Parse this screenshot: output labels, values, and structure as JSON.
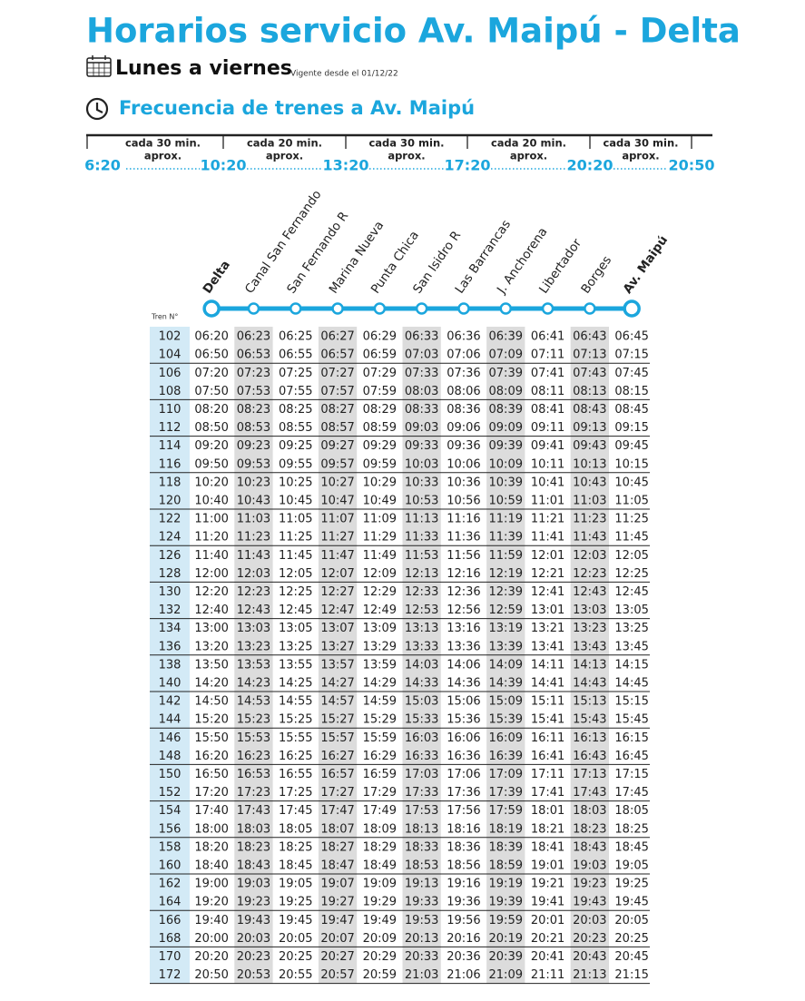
{
  "header": {
    "title": "Horarios servicio Av. Maipú - Delta",
    "days": "Lunes a viernes",
    "valid_from": "Vigente desde el 01/12/22"
  },
  "frequency": {
    "heading": "Frecuencia de trenes a Av. Maipú",
    "segments": [
      {
        "label": "cada 30 min.",
        "note": "aprox."
      },
      {
        "label": "cada 20 min.",
        "note": "aprox."
      },
      {
        "label": "cada 30 min.",
        "note": "aprox."
      },
      {
        "label": "cada 20 min.",
        "note": "aprox."
      },
      {
        "label": "cada 30 min.",
        "note": "aprox."
      }
    ],
    "times": [
      "6:20",
      "10:20",
      "13:20",
      "17:20",
      "20:20",
      "20:50"
    ]
  },
  "timetable": {
    "train_header": "Tren N°",
    "stations": [
      "Delta",
      "Canal San Fernando",
      "San Fernando R",
      "Marina Nueva",
      "Punta Chica",
      "San Isidro R",
      "Las Barrancas",
      "J. Anchorena",
      "Libertador",
      "Borges",
      "Av. Maipú"
    ],
    "rows": [
      [
        "102",
        "06:20",
        "06:23",
        "06:25",
        "06:27",
        "06:29",
        "06:33",
        "06:36",
        "06:39",
        "06:41",
        "06:43",
        "06:45"
      ],
      [
        "104",
        "06:50",
        "06:53",
        "06:55",
        "06:57",
        "06:59",
        "07:03",
        "07:06",
        "07:09",
        "07:11",
        "07:13",
        "07:15"
      ],
      [
        "106",
        "07:20",
        "07:23",
        "07:25",
        "07:27",
        "07:29",
        "07:33",
        "07:36",
        "07:39",
        "07:41",
        "07:43",
        "07:45"
      ],
      [
        "108",
        "07:50",
        "07:53",
        "07:55",
        "07:57",
        "07:59",
        "08:03",
        "08:06",
        "08:09",
        "08:11",
        "08:13",
        "08:15"
      ],
      [
        "110",
        "08:20",
        "08:23",
        "08:25",
        "08:27",
        "08:29",
        "08:33",
        "08:36",
        "08:39",
        "08:41",
        "08:43",
        "08:45"
      ],
      [
        "112",
        "08:50",
        "08:53",
        "08:55",
        "08:57",
        "08:59",
        "09:03",
        "09:06",
        "09:09",
        "09:11",
        "09:13",
        "09:15"
      ],
      [
        "114",
        "09:20",
        "09:23",
        "09:25",
        "09:27",
        "09:29",
        "09:33",
        "09:36",
        "09:39",
        "09:41",
        "09:43",
        "09:45"
      ],
      [
        "116",
        "09:50",
        "09:53",
        "09:55",
        "09:57",
        "09:59",
        "10:03",
        "10:06",
        "10:09",
        "10:11",
        "10:13",
        "10:15"
      ],
      [
        "118",
        "10:20",
        "10:23",
        "10:25",
        "10:27",
        "10:29",
        "10:33",
        "10:36",
        "10:39",
        "10:41",
        "10:43",
        "10:45"
      ],
      [
        "120",
        "10:40",
        "10:43",
        "10:45",
        "10:47",
        "10:49",
        "10:53",
        "10:56",
        "10:59",
        "11:01",
        "11:03",
        "11:05"
      ],
      [
        "122",
        "11:00",
        "11:03",
        "11:05",
        "11:07",
        "11:09",
        "11:13",
        "11:16",
        "11:19",
        "11:21",
        "11:23",
        "11:25"
      ],
      [
        "124",
        "11:20",
        "11:23",
        "11:25",
        "11:27",
        "11:29",
        "11:33",
        "11:36",
        "11:39",
        "11:41",
        "11:43",
        "11:45"
      ],
      [
        "126",
        "11:40",
        "11:43",
        "11:45",
        "11:47",
        "11:49",
        "11:53",
        "11:56",
        "11:59",
        "12:01",
        "12:03",
        "12:05"
      ],
      [
        "128",
        "12:00",
        "12:03",
        "12:05",
        "12:07",
        "12:09",
        "12:13",
        "12:16",
        "12:19",
        "12:21",
        "12:23",
        "12:25"
      ],
      [
        "130",
        "12:20",
        "12:23",
        "12:25",
        "12:27",
        "12:29",
        "12:33",
        "12:36",
        "12:39",
        "12:41",
        "12:43",
        "12:45"
      ],
      [
        "132",
        "12:40",
        "12:43",
        "12:45",
        "12:47",
        "12:49",
        "12:53",
        "12:56",
        "12:59",
        "13:01",
        "13:03",
        "13:05"
      ],
      [
        "134",
        "13:00",
        "13:03",
        "13:05",
        "13:07",
        "13:09",
        "13:13",
        "13:16",
        "13:19",
        "13:21",
        "13:23",
        "13:25"
      ],
      [
        "136",
        "13:20",
        "13:23",
        "13:25",
        "13:27",
        "13:29",
        "13:33",
        "13:36",
        "13:39",
        "13:41",
        "13:43",
        "13:45"
      ],
      [
        "138",
        "13:50",
        "13:53",
        "13:55",
        "13:57",
        "13:59",
        "14:03",
        "14:06",
        "14:09",
        "14:11",
        "14:13",
        "14:15"
      ],
      [
        "140",
        "14:20",
        "14:23",
        "14:25",
        "14:27",
        "14:29",
        "14:33",
        "14:36",
        "14:39",
        "14:41",
        "14:43",
        "14:45"
      ],
      [
        "142",
        "14:50",
        "14:53",
        "14:55",
        "14:57",
        "14:59",
        "15:03",
        "15:06",
        "15:09",
        "15:11",
        "15:13",
        "15:15"
      ],
      [
        "144",
        "15:20",
        "15:23",
        "15:25",
        "15:27",
        "15:29",
        "15:33",
        "15:36",
        "15:39",
        "15:41",
        "15:43",
        "15:45"
      ],
      [
        "146",
        "15:50",
        "15:53",
        "15:55",
        "15:57",
        "15:59",
        "16:03",
        "16:06",
        "16:09",
        "16:11",
        "16:13",
        "16:15"
      ],
      [
        "148",
        "16:20",
        "16:23",
        "16:25",
        "16:27",
        "16:29",
        "16:33",
        "16:36",
        "16:39",
        "16:41",
        "16:43",
        "16:45"
      ],
      [
        "150",
        "16:50",
        "16:53",
        "16:55",
        "16:57",
        "16:59",
        "17:03",
        "17:06",
        "17:09",
        "17:11",
        "17:13",
        "17:15"
      ],
      [
        "152",
        "17:20",
        "17:23",
        "17:25",
        "17:27",
        "17:29",
        "17:33",
        "17:36",
        "17:39",
        "17:41",
        "17:43",
        "17:45"
      ],
      [
        "154",
        "17:40",
        "17:43",
        "17:45",
        "17:47",
        "17:49",
        "17:53",
        "17:56",
        "17:59",
        "18:01",
        "18:03",
        "18:05"
      ],
      [
        "156",
        "18:00",
        "18:03",
        "18:05",
        "18:07",
        "18:09",
        "18:13",
        "18:16",
        "18:19",
        "18:21",
        "18:23",
        "18:25"
      ],
      [
        "158",
        "18:20",
        "18:23",
        "18:25",
        "18:27",
        "18:29",
        "18:33",
        "18:36",
        "18:39",
        "18:41",
        "18:43",
        "18:45"
      ],
      [
        "160",
        "18:40",
        "18:43",
        "18:45",
        "18:47",
        "18:49",
        "18:53",
        "18:56",
        "18:59",
        "19:01",
        "19:03",
        "19:05"
      ],
      [
        "162",
        "19:00",
        "19:03",
        "19:05",
        "19:07",
        "19:09",
        "19:13",
        "19:16",
        "19:19",
        "19:21",
        "19:23",
        "19:25"
      ],
      [
        "164",
        "19:20",
        "19:23",
        "19:25",
        "19:27",
        "19:29",
        "19:33",
        "19:36",
        "19:39",
        "19:41",
        "19:43",
        "19:45"
      ],
      [
        "166",
        "19:40",
        "19:43",
        "19:45",
        "19:47",
        "19:49",
        "19:53",
        "19:56",
        "19:59",
        "20:01",
        "20:03",
        "20:05"
      ],
      [
        "168",
        "20:00",
        "20:03",
        "20:05",
        "20:07",
        "20:09",
        "20:13",
        "20:16",
        "20:19",
        "20:21",
        "20:23",
        "20:25"
      ],
      [
        "170",
        "20:20",
        "20:23",
        "20:25",
        "20:27",
        "20:29",
        "20:33",
        "20:36",
        "20:39",
        "20:41",
        "20:43",
        "20:45"
      ],
      [
        "172",
        "20:50",
        "20:53",
        "20:55",
        "20:57",
        "20:59",
        "21:03",
        "21:06",
        "21:09",
        "21:11",
        "21:13",
        "21:15"
      ]
    ]
  }
}
